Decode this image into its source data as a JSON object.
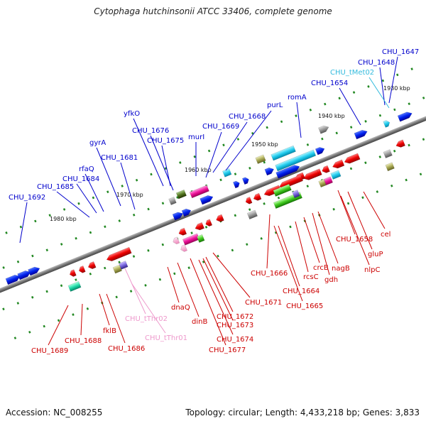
{
  "title": "Cytophaga hutchinsonii ATCC 33406, complete genome",
  "footer": {
    "accession": "Accession: NC_008255",
    "summary": "Topology: circular; Length: 4,433,218 bp; Genes: 3,833"
  },
  "colors": {
    "forward_label": "#0000cc",
    "reverse_label": "#cc0000",
    "trna_forward": "#33bbdd",
    "trna_reverse": "#ee99cc",
    "backbone": "#808080"
  },
  "kbp_ticks": [
    "1930 kbp",
    "1940 kbp",
    "1950 kbp",
    "1960 kbp",
    "1970 kbp",
    "1980 kbp"
  ],
  "forward_labels": [
    {
      "id": "CHU_1647",
      "text": "CHU_1647"
    },
    {
      "id": "CHU_1648",
      "text": "CHU_1648"
    },
    {
      "id": "CHU_tMet02",
      "text": "CHU_tMet02"
    },
    {
      "id": "CHU_1654",
      "text": "CHU_1654"
    },
    {
      "id": "romA",
      "text": "romA"
    },
    {
      "id": "purL",
      "text": "purL"
    },
    {
      "id": "CHU_1668",
      "text": "CHU_1668"
    },
    {
      "id": "CHU_1669",
      "text": "CHU_1669"
    },
    {
      "id": "yfkO",
      "text": "yfkO"
    },
    {
      "id": "CHU_1676",
      "text": "CHU_1676"
    },
    {
      "id": "murI",
      "text": "murI"
    },
    {
      "id": "CHU_1675",
      "text": "CHU_1675"
    },
    {
      "id": "gyrA",
      "text": "gyrA"
    },
    {
      "id": "CHU_1681",
      "text": "CHU_1681"
    },
    {
      "id": "rfaQ",
      "text": "rfaQ"
    },
    {
      "id": "CHU_1684",
      "text": "CHU_1684"
    },
    {
      "id": "CHU_1685",
      "text": "CHU_1685"
    },
    {
      "id": "CHU_1692",
      "text": "CHU_1692"
    }
  ],
  "reverse_labels": [
    {
      "id": "cel",
      "text": "cel"
    },
    {
      "id": "CHU_1658",
      "text": "CHU_1658"
    },
    {
      "id": "gluP",
      "text": "gluP"
    },
    {
      "id": "nlpC",
      "text": "nlpC"
    },
    {
      "id": "nagB",
      "text": "nagB"
    },
    {
      "id": "crcB",
      "text": "crcB"
    },
    {
      "id": "rcsC",
      "text": "rcsC"
    },
    {
      "id": "gdh",
      "text": "gdh"
    },
    {
      "id": "CHU_1666",
      "text": "CHU_1666"
    },
    {
      "id": "CHU_1664",
      "text": "CHU_1664"
    },
    {
      "id": "CHU_1665",
      "text": "CHU_1665"
    },
    {
      "id": "CHU_1671",
      "text": "CHU_1671"
    },
    {
      "id": "CHU_1672",
      "text": "CHU_1672"
    },
    {
      "id": "CHU_1673",
      "text": "CHU_1673"
    },
    {
      "id": "CHU_1674",
      "text": "CHU_1674"
    },
    {
      "id": "CHU_1677",
      "text": "CHU_1677"
    },
    {
      "id": "dnaQ",
      "text": "dnaQ"
    },
    {
      "id": "dinB",
      "text": "dinB"
    },
    {
      "id": "CHU_tThr02",
      "text": "CHU_tThr02"
    },
    {
      "id": "CHU_tThr01",
      "text": "CHU_tThr01"
    },
    {
      "id": "CHU_1689",
      "text": "CHU_1689"
    },
    {
      "id": "CHU_1688",
      "text": "CHU_1688"
    },
    {
      "id": "fklB",
      "text": "fklB"
    },
    {
      "id": "CHU_1686",
      "text": "CHU_1686"
    }
  ]
}
